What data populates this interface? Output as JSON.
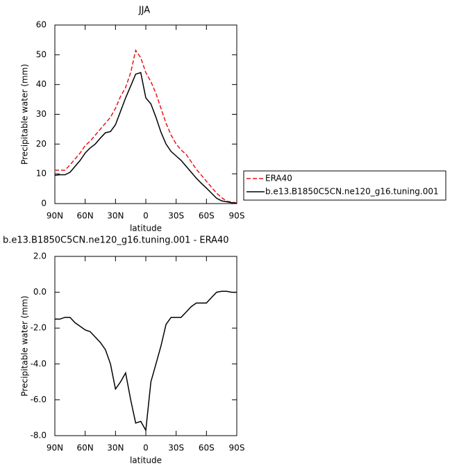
{
  "chart_data": [
    {
      "type": "line",
      "title": "JJA",
      "xlabel": "latitude",
      "ylabel": "Precipitable water (mm)",
      "x": [
        90,
        85,
        80,
        75,
        70,
        65,
        60,
        55,
        50,
        45,
        40,
        35,
        30,
        25,
        20,
        15,
        10,
        5,
        0,
        -5,
        -10,
        -15,
        -20,
        -25,
        -30,
        -35,
        -40,
        -45,
        -50,
        -55,
        -60,
        -65,
        -70,
        -75,
        -80,
        -85,
        -90
      ],
      "series": [
        {
          "name": "ERA40",
          "color": "#e8141c",
          "line_style": "dashed",
          "values": [
            11.2,
            11.2,
            11.2,
            13,
            15,
            17,
            19.5,
            21,
            23,
            25,
            27,
            29,
            32,
            36,
            39,
            44,
            51.5,
            49,
            44,
            41,
            37,
            32,
            27,
            23,
            20,
            18,
            16.5,
            14,
            11.5,
            9.5,
            7.5,
            5.5,
            3.5,
            2,
            0.8,
            0.5,
            0.2
          ]
        },
        {
          "name": "b.e13.B1850C5CN.ne120_g16.tuning.001",
          "color": "#000000",
          "line_style": "solid",
          "values": [
            9.5,
            9.7,
            9.7,
            10.5,
            12.5,
            14.5,
            17,
            18.7,
            20,
            22,
            23.8,
            24.2,
            26.5,
            31,
            35.5,
            39.5,
            43.5,
            44,
            35.5,
            33.5,
            29,
            24,
            20,
            17.5,
            16,
            14.5,
            12.5,
            10.5,
            8.5,
            6.8,
            5.2,
            3.5,
            1.8,
            0.9,
            0.6,
            0.3,
            0.1
          ]
        }
      ],
      "xlim": [
        90,
        -90
      ],
      "xticks": [
        {
          "value": 90,
          "label": "90N"
        },
        {
          "value": 60,
          "label": "60N"
        },
        {
          "value": 30,
          "label": "30N"
        },
        0,
        {
          "value": -30,
          "label": "30S"
        },
        {
          "value": -60,
          "label": "60S"
        },
        {
          "value": -90,
          "label": "90S"
        }
      ],
      "ylim": [
        0,
        60
      ],
      "yticks": [
        0,
        10,
        20,
        30,
        40,
        50,
        60
      ],
      "legend": "right"
    },
    {
      "type": "line",
      "title": "b.e13.B1850C5CN.ne120_g16.tuning.001 - ERA40",
      "xlabel": "latitude",
      "ylabel": "Precipitable water (mm)",
      "x": [
        90,
        85,
        80,
        75,
        70,
        65,
        60,
        55,
        50,
        45,
        40,
        35,
        30,
        25,
        20,
        15,
        10,
        5,
        0,
        -5,
        -10,
        -15,
        -20,
        -25,
        -30,
        -35,
        -40,
        -45,
        -50,
        -55,
        -60,
        -65,
        -70,
        -75,
        -80,
        -85,
        -90
      ],
      "color": "#000000",
      "values": [
        -1.5,
        -1.5,
        -1.4,
        -1.4,
        -1.7,
        -1.9,
        -2.1,
        -2.2,
        -2.5,
        -2.8,
        -3.2,
        -4,
        -5.4,
        -5,
        -4.5,
        -6,
        -7.3,
        -7.2,
        -7.7,
        -5,
        -4,
        -3,
        -1.8,
        -1.4,
        -1.4,
        -1.4,
        -1.1,
        -0.8,
        -0.6,
        -0.6,
        -0.6,
        -0.3,
        0,
        0.05,
        0.05,
        0,
        0
      ],
      "xlim": [
        90,
        -90
      ],
      "xticks": [
        {
          "value": 90,
          "label": "90N"
        },
        {
          "value": 60,
          "label": "60N"
        },
        {
          "value": 30,
          "label": "30N"
        },
        0,
        {
          "value": -30,
          "label": "30S"
        },
        {
          "value": -60,
          "label": "60S"
        },
        {
          "value": -90,
          "label": "90S"
        }
      ],
      "ylim": [
        -8,
        2
      ],
      "yticks": [
        {
          "value": -8,
          "label": "-8.0"
        },
        {
          "value": -6,
          "label": "-6.0"
        },
        {
          "value": -4,
          "label": "-4.0"
        },
        {
          "value": -2,
          "label": "-2.0"
        },
        {
          "value": 0,
          "label": "0.0"
        },
        {
          "value": 2,
          "label": "2.0"
        }
      ]
    }
  ]
}
